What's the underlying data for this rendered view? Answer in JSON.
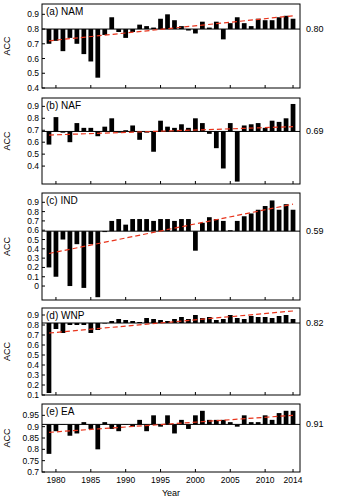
{
  "chart_data": [
    {
      "type": "bar",
      "title": "(a) NAM",
      "y_label": "ACC",
      "x": [
        1979,
        1980,
        1981,
        1982,
        1983,
        1984,
        1985,
        1986,
        1987,
        1988,
        1989,
        1990,
        1991,
        1992,
        1993,
        1994,
        1995,
        1996,
        1997,
        1998,
        1999,
        2000,
        2001,
        2002,
        2003,
        2004,
        2005,
        2006,
        2007,
        2008,
        2009,
        2010,
        2011,
        2012,
        2013,
        2014
      ],
      "values": [
        0.7,
        0.72,
        0.65,
        0.74,
        0.7,
        0.63,
        0.58,
        0.47,
        0.76,
        0.88,
        0.78,
        0.74,
        0.78,
        0.83,
        0.82,
        0.81,
        0.87,
        0.9,
        0.86,
        0.82,
        0.79,
        0.77,
        0.85,
        0.81,
        0.85,
        0.73,
        0.84,
        0.88,
        0.84,
        0.82,
        0.87,
        0.86,
        0.86,
        0.88,
        0.89,
        0.87
      ],
      "baseline": {
        "value": 0.8,
        "label": "0.80"
      },
      "trend": {
        "x": [
          1979,
          2014
        ],
        "values": [
          0.72,
          0.89
        ]
      },
      "color": "#000000",
      "xlim": [
        1978,
        2015
      ],
      "xticks": [
        1980,
        1985,
        1990,
        1995,
        2000,
        2005,
        2010,
        2014
      ],
      "ylim": [
        0.4,
        0.97
      ],
      "yticks": [
        0.4,
        0.5,
        0.6,
        0.7,
        0.8,
        0.9
      ],
      "tick_labels": "y"
    },
    {
      "type": "bar",
      "title": "(b) NAF",
      "y_label": "ACC",
      "x": [
        1979,
        1980,
        1981,
        1982,
        1983,
        1984,
        1985,
        1986,
        1987,
        1988,
        1989,
        1990,
        1991,
        1992,
        1993,
        1994,
        1995,
        1996,
        1997,
        1998,
        1999,
        2000,
        2001,
        2002,
        2003,
        2004,
        2005,
        2006,
        2007,
        2008,
        2009,
        2010,
        2011,
        2012,
        2013,
        2014
      ],
      "values": [
        0.58,
        0.81,
        0.68,
        0.6,
        0.76,
        0.72,
        0.72,
        0.65,
        0.73,
        0.8,
        0.68,
        0.7,
        0.74,
        0.62,
        0.68,
        0.52,
        0.78,
        0.73,
        0.72,
        0.75,
        0.72,
        0.8,
        0.76,
        0.67,
        0.55,
        0.38,
        0.76,
        0.27,
        0.74,
        0.75,
        0.76,
        0.72,
        0.78,
        0.77,
        0.8,
        0.92
      ],
      "baseline": {
        "value": 0.69,
        "label": "0.69"
      },
      "trend": {
        "x": [
          1979,
          2014
        ],
        "values": [
          0.66,
          0.73
        ]
      },
      "color": "#000000",
      "xlim": [
        1978,
        2015
      ],
      "xticks": [
        1980,
        1985,
        1990,
        1995,
        2000,
        2005,
        2010,
        2014
      ],
      "ylim": [
        0.25,
        0.97
      ],
      "yticks": [
        0.4,
        0.5,
        0.6,
        0.7,
        0.8,
        0.9
      ],
      "tick_labels": "y"
    },
    {
      "type": "bar",
      "title": "(c) IND",
      "y_label": "ACC",
      "x": [
        1979,
        1980,
        1981,
        1982,
        1983,
        1984,
        1985,
        1986,
        1987,
        1988,
        1989,
        1990,
        1991,
        1992,
        1993,
        1994,
        1995,
        1996,
        1997,
        1998,
        1999,
        2000,
        2001,
        2002,
        2003,
        2004,
        2005,
        2006,
        2007,
        2008,
        2009,
        2010,
        2011,
        2012,
        2013,
        2014
      ],
      "values": [
        0.2,
        0.1,
        0.5,
        0.0,
        0.45,
        -0.02,
        0.45,
        -0.12,
        0.58,
        0.7,
        0.72,
        0.66,
        0.72,
        0.72,
        0.72,
        0.7,
        0.72,
        0.72,
        0.7,
        0.72,
        0.72,
        0.38,
        0.68,
        0.74,
        0.72,
        0.7,
        0.6,
        0.7,
        0.75,
        0.78,
        0.82,
        0.86,
        0.92,
        0.82,
        0.88,
        0.82
      ],
      "baseline": {
        "value": 0.59,
        "label": "0.59"
      },
      "trend": {
        "x": [
          1979,
          2014
        ],
        "values": [
          0.35,
          0.88
        ]
      },
      "color": "#000000",
      "xlim": [
        1978,
        2015
      ],
      "xticks": [
        1980,
        1985,
        1990,
        1995,
        2000,
        2005,
        2010,
        2014
      ],
      "ylim": [
        -0.15,
        1.0
      ],
      "yticks": [
        0,
        0.1,
        0.2,
        0.3,
        0.4,
        0.5,
        0.6,
        0.7,
        0.8,
        0.9
      ],
      "tick_labels": "y"
    },
    {
      "type": "bar",
      "title": "(d) WNP",
      "y_label": "ACC",
      "x": [
        1979,
        1980,
        1981,
        1982,
        1983,
        1984,
        1985,
        1986,
        1987,
        1988,
        1989,
        1990,
        1991,
        1992,
        1993,
        1994,
        1995,
        1996,
        1997,
        1998,
        1999,
        2000,
        2001,
        2002,
        2003,
        2004,
        2005,
        2006,
        2007,
        2008,
        2009,
        2010,
        2011,
        2012,
        2013,
        2014
      ],
      "values": [
        0.12,
        0.76,
        0.72,
        0.8,
        0.8,
        0.8,
        0.72,
        0.75,
        0.82,
        0.84,
        0.86,
        0.85,
        0.84,
        0.83,
        0.87,
        0.86,
        0.85,
        0.84,
        0.86,
        0.88,
        0.86,
        0.9,
        0.87,
        0.88,
        0.85,
        0.86,
        0.9,
        0.87,
        0.86,
        0.89,
        0.88,
        0.88,
        0.87,
        0.89,
        0.9,
        0.86
      ],
      "baseline": {
        "value": 0.82,
        "label": "0.82"
      },
      "trend": {
        "x": [
          1979,
          2014
        ],
        "values": [
          0.72,
          0.94
        ]
      },
      "color": "#000000",
      "xlim": [
        1978,
        2015
      ],
      "xticks": [
        1980,
        1985,
        1990,
        1995,
        2000,
        2005,
        2010,
        2014
      ],
      "ylim": [
        0.1,
        0.97
      ],
      "yticks": [
        0.1,
        0.2,
        0.3,
        0.4,
        0.5,
        0.6,
        0.7,
        0.8,
        0.9
      ],
      "tick_labels": "y"
    },
    {
      "type": "bar",
      "title": "(e) EA",
      "y_label": "ACC",
      "x_label": "Year",
      "x": [
        1979,
        1980,
        1981,
        1982,
        1983,
        1984,
        1985,
        1986,
        1987,
        1988,
        1989,
        1990,
        1991,
        1992,
        1993,
        1994,
        1995,
        1996,
        1997,
        1998,
        1999,
        2000,
        2001,
        2002,
        2003,
        2004,
        2005,
        2006,
        2007,
        2008,
        2009,
        2010,
        2011,
        2012,
        2013,
        2014
      ],
      "values": [
        0.78,
        0.88,
        0.91,
        0.86,
        0.87,
        0.92,
        0.89,
        0.8,
        0.92,
        0.89,
        0.88,
        0.91,
        0.9,
        0.93,
        0.88,
        0.95,
        0.9,
        0.95,
        0.87,
        0.93,
        0.89,
        0.95,
        0.97,
        0.93,
        0.93,
        0.93,
        0.92,
        0.9,
        0.95,
        0.92,
        0.92,
        0.95,
        0.93,
        0.96,
        0.97,
        0.97
      ],
      "baseline": {
        "value": 0.91,
        "label": "0.91"
      },
      "trend": {
        "x": [
          1979,
          2014
        ],
        "values": [
          0.875,
          0.95
        ]
      },
      "color": "#000000",
      "xlim": [
        1978,
        2015
      ],
      "xticks": [
        1980,
        1985,
        1990,
        1995,
        2000,
        2005,
        2010,
        2014
      ],
      "ylim": [
        0.7,
        1.0
      ],
      "yticks": [
        0.7,
        0.75,
        0.8,
        0.85,
        0.9,
        0.95
      ]
    }
  ]
}
